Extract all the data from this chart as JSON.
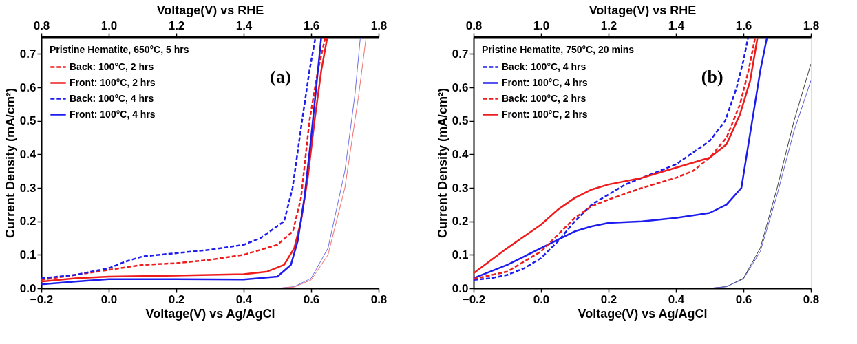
{
  "chart_data": [
    {
      "type": "line",
      "xlabel": "Voltage(V) vs Ag/AgCl",
      "x2label": "Voltage(V) vs RHE",
      "ylabel": "Current Density (mA/cm²)",
      "xlim": [
        -0.2,
        0.8
      ],
      "xticks": [
        -0.2,
        {
          "value": 0,
          "label": "0.0"
        },
        0.2,
        0.4,
        0.6,
        0.8
      ],
      "x2lim": [
        0.8,
        1.8
      ],
      "x2ticks": [
        0.8,
        {
          "value": 1,
          "label": "1.0"
        },
        1.2,
        1.4,
        1.6,
        1.8
      ],
      "ylim": [
        0,
        0.75
      ],
      "yticks": [
        {
          "value": 0,
          "label": "0.0"
        },
        0.1,
        0.2,
        0.3,
        0.4,
        0.5,
        0.6,
        0.7
      ],
      "grid": false,
      "legend": "top left",
      "legend_title": "Pristine Hematite, 650°C, 5 hrs",
      "annotations": [
        "(a)"
      ],
      "series": [
        {
          "name": "Back: 100°C, 2 hrs",
          "color": "#ee1c1c",
          "line_style": "dashed",
          "x": [
            -0.2,
            -0.1,
            0.0,
            0.1,
            0.2,
            0.3,
            0.4,
            0.45,
            0.5,
            0.546,
            0.57,
            0.595,
            0.62,
            0.642
          ],
          "values": [
            0.025,
            0.04,
            0.055,
            0.07,
            0.075,
            0.085,
            0.1,
            0.115,
            0.13,
            0.17,
            0.27,
            0.5,
            0.65,
            0.75
          ]
        },
        {
          "name": "Front: 100°C, 2 hrs",
          "color": "#ee1c1c",
          "line_style": "solid",
          "x": [
            -0.2,
            -0.1,
            0.0,
            0.2,
            0.4,
            0.47,
            0.52,
            0.55,
            0.57,
            0.59,
            0.61,
            0.63,
            0.648
          ],
          "values": [
            0.02,
            0.03,
            0.035,
            0.038,
            0.042,
            0.05,
            0.07,
            0.12,
            0.2,
            0.33,
            0.5,
            0.65,
            0.75
          ]
        },
        {
          "name": "Back:  100°C, 4 hrs",
          "color": "#1c1cee",
          "line_style": "dashed",
          "x": [
            -0.2,
            -0.1,
            0.0,
            0.05,
            0.1,
            0.2,
            0.3,
            0.4,
            0.45,
            0.52,
            0.545,
            0.573,
            0.595,
            0.613
          ],
          "values": [
            0.03,
            0.04,
            0.06,
            0.08,
            0.095,
            0.105,
            0.115,
            0.13,
            0.15,
            0.2,
            0.3,
            0.5,
            0.65,
            0.75
          ]
        },
        {
          "name": "Front: 100°C, 4 hrs",
          "color": "#1c1cee",
          "line_style": "solid",
          "x": [
            -0.2,
            -0.1,
            0.0,
            0.2,
            0.4,
            0.5,
            0.54,
            0.56,
            0.58,
            0.6,
            0.615,
            0.63
          ],
          "values": [
            0.012,
            0.02,
            0.027,
            0.027,
            0.026,
            0.035,
            0.07,
            0.14,
            0.27,
            0.45,
            0.6,
            0.75
          ]
        },
        {
          "color": "#7070e8",
          "line_style": "solid",
          "x": [
            0.5,
            0.55,
            0.6,
            0.65,
            0.7,
            0.73,
            0.746
          ],
          "values": [
            0.0,
            0.005,
            0.03,
            0.12,
            0.35,
            0.58,
            0.75
          ]
        },
        {
          "color": "#f07070",
          "line_style": "solid",
          "x": [
            0.5,
            0.55,
            0.6,
            0.65,
            0.7,
            0.74,
            0.763
          ],
          "values": [
            0.0,
            0.004,
            0.025,
            0.1,
            0.3,
            0.57,
            0.75
          ]
        }
      ]
    },
    {
      "type": "line",
      "xlabel": "Voltage(V) vs Ag/AgCl",
      "x2label": "Voltage(V) vs RHE",
      "ylabel": "Current Density (mA/cm²)",
      "xlim": [
        -0.2,
        0.8
      ],
      "xticks": [
        -0.2,
        {
          "value": 0,
          "label": "0.0"
        },
        0.2,
        0.4,
        0.6,
        0.8
      ],
      "x2lim": [
        0.8,
        1.8
      ],
      "x2ticks": [
        0.8,
        {
          "value": 1,
          "label": "1.0"
        },
        1.2,
        1.4,
        1.6,
        1.8
      ],
      "ylim": [
        0,
        0.75
      ],
      "yticks": [
        {
          "value": 0,
          "label": "0.0"
        },
        0.1,
        0.2,
        0.3,
        0.4,
        0.5,
        0.6,
        0.7
      ],
      "grid": false,
      "legend": "top left",
      "legend_title": "Pristine Hematite, 750°C, 20 mins",
      "annotations": [
        "(b)"
      ],
      "series": [
        {
          "name": "Back: 100°C, 4 hrs",
          "color": "#1c1cee",
          "line_style": "dashed",
          "x": [
            -0.2,
            -0.15,
            -0.1,
            -0.05,
            0.0,
            0.05,
            0.1,
            0.15,
            0.2,
            0.25,
            0.3,
            0.35,
            0.4,
            0.5,
            0.546,
            0.58,
            0.6,
            0.614
          ],
          "values": [
            0.025,
            0.03,
            0.04,
            0.06,
            0.09,
            0.14,
            0.2,
            0.25,
            0.28,
            0.31,
            0.33,
            0.35,
            0.37,
            0.44,
            0.5,
            0.6,
            0.68,
            0.75
          ]
        },
        {
          "name": "Front: 100°C, 4 hrs",
          "color": "#1c1cee",
          "line_style": "solid",
          "x": [
            -0.2,
            -0.1,
            0.0,
            0.05,
            0.1,
            0.15,
            0.2,
            0.3,
            0.4,
            0.5,
            0.55,
            0.594,
            0.626,
            0.65,
            0.67
          ],
          "values": [
            0.03,
            0.07,
            0.12,
            0.145,
            0.17,
            0.185,
            0.195,
            0.2,
            0.21,
            0.225,
            0.25,
            0.3,
            0.5,
            0.65,
            0.75
          ]
        },
        {
          "name": "Back:  100°C, 2 hrs",
          "color": "#ee1c1c",
          "line_style": "dashed",
          "x": [
            -0.2,
            -0.1,
            0.0,
            0.05,
            0.1,
            0.15,
            0.2,
            0.3,
            0.4,
            0.45,
            0.5,
            0.55,
            0.59,
            0.615,
            0.635
          ],
          "values": [
            0.028,
            0.05,
            0.11,
            0.16,
            0.21,
            0.245,
            0.265,
            0.3,
            0.33,
            0.35,
            0.39,
            0.45,
            0.55,
            0.65,
            0.75
          ]
        },
        {
          "name": "Front: 100°C, 2 hrs",
          "color": "#ee1c1c",
          "line_style": "solid",
          "x": [
            -0.2,
            -0.1,
            0.0,
            0.05,
            0.1,
            0.15,
            0.2,
            0.3,
            0.4,
            0.5,
            0.55,
            0.59,
            0.62,
            0.642
          ],
          "values": [
            0.045,
            0.12,
            0.19,
            0.235,
            0.27,
            0.295,
            0.31,
            0.33,
            0.36,
            0.39,
            0.43,
            0.52,
            0.62,
            0.75
          ]
        },
        {
          "color": "#404040",
          "line_style": "solid",
          "x": [
            0.5,
            0.55,
            0.6,
            0.65,
            0.7,
            0.75,
            0.8
          ],
          "values": [
            0.0,
            0.005,
            0.03,
            0.12,
            0.3,
            0.5,
            0.67
          ]
        },
        {
          "color": "#6060d8",
          "line_style": "solid",
          "x": [
            0.5,
            0.55,
            0.6,
            0.65,
            0.7,
            0.75,
            0.8
          ],
          "values": [
            0.0,
            0.005,
            0.028,
            0.11,
            0.28,
            0.47,
            0.62
          ]
        }
      ]
    }
  ]
}
